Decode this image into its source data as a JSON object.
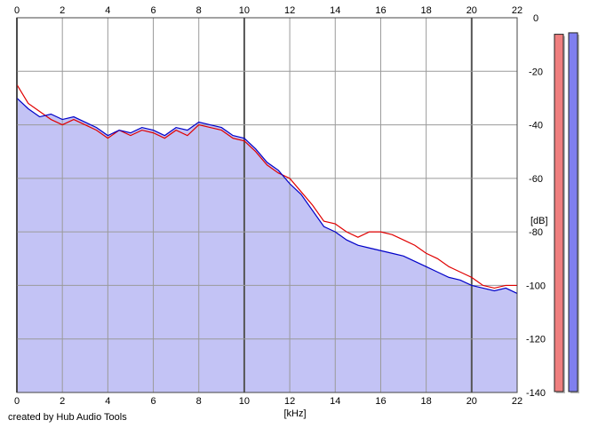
{
  "chart_data": {
    "type": "line",
    "title": "",
    "xlabel": "[kHz]",
    "ylabel": "[dB]",
    "xlim": [
      0,
      22
    ],
    "ylim": [
      -140,
      0
    ],
    "x_ticks": [
      0,
      2,
      4,
      6,
      8,
      10,
      12,
      14,
      16,
      18,
      20,
      22
    ],
    "y_ticks": [
      0,
      -20,
      -40,
      -60,
      -80,
      -100,
      -120,
      -140
    ],
    "grid": true,
    "series": [
      {
        "color": "#e00000",
        "x": [
          0,
          0.5,
          1,
          1.5,
          2,
          2.5,
          3,
          3.5,
          4,
          4.5,
          5,
          5.5,
          6,
          6.5,
          7,
          7.5,
          8,
          8.5,
          9,
          9.5,
          10,
          10.5,
          11,
          11.5,
          12,
          12.5,
          13,
          13.5,
          14,
          14.5,
          15,
          15.5,
          16,
          16.5,
          17,
          17.5,
          18,
          18.5,
          19,
          19.5,
          20,
          20.5,
          21,
          21.5,
          22
        ],
        "y": [
          -25,
          -32,
          -35,
          -38,
          -40,
          -38,
          -40,
          -42,
          -45,
          -42,
          -44,
          -42,
          -43,
          -45,
          -42,
          -44,
          -40,
          -41,
          -42,
          -45,
          -46,
          -50,
          -55,
          -58,
          -60,
          -65,
          -70,
          -76,
          -77,
          -80,
          -82,
          -80,
          -80,
          -81,
          -83,
          -85,
          -88,
          -90,
          -93,
          -95,
          -97,
          -100,
          -101,
          -100,
          -100
        ]
      },
      {
        "color": "#0000c8",
        "x": [
          0,
          0.5,
          1,
          1.5,
          2,
          2.5,
          3,
          3.5,
          4,
          4.5,
          5,
          5.5,
          6,
          6.5,
          7,
          7.5,
          8,
          8.5,
          9,
          9.5,
          10,
          10.5,
          11,
          11.5,
          12,
          12.5,
          13,
          13.5,
          14,
          14.5,
          15,
          15.5,
          16,
          16.5,
          17,
          17.5,
          18,
          18.5,
          19,
          19.5,
          20,
          20.5,
          21,
          21.5,
          22
        ],
        "y": [
          -30,
          -34,
          -37,
          -36,
          -38,
          -37,
          -39,
          -41,
          -44,
          -42,
          -43,
          -41,
          -42,
          -44,
          -41,
          -42,
          -39,
          -40,
          -41,
          -44,
          -45,
          -49,
          -54,
          -57,
          -62,
          -66,
          -72,
          -78,
          -80,
          -83,
          -85,
          -86,
          -87,
          -88,
          -89,
          -91,
          -93,
          -95,
          -97,
          -98,
          -100,
          -101,
          -102,
          -101,
          -103
        ]
      }
    ],
    "fill_color": "#c3c3f5",
    "level_meters": [
      {
        "color": "#ef7f7f",
        "level": 0.972
      },
      {
        "color": "#7f7fef",
        "level": 0.976
      }
    ]
  },
  "footer": {
    "credit": "created by Hub Audio Tools"
  }
}
